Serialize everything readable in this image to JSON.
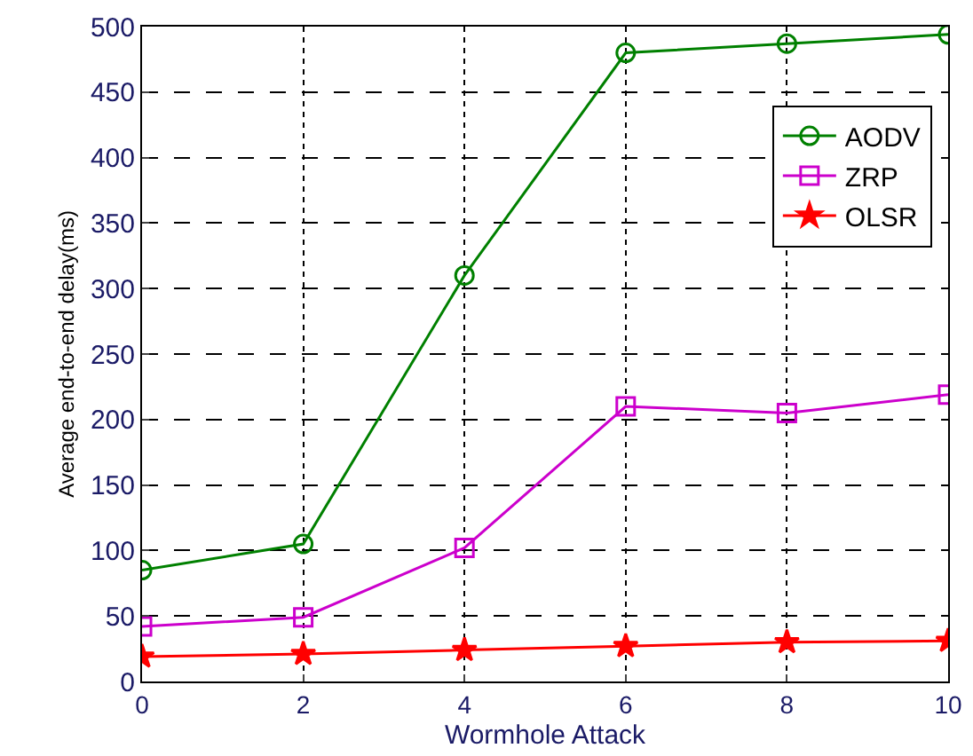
{
  "chart_data": {
    "type": "line",
    "xlabel": "Wormhole Attack",
    "ylabel": "Average end-to-end delay(ms)",
    "x": [
      0,
      2,
      4,
      6,
      8,
      10
    ],
    "series": [
      {
        "name": "AODV",
        "color": "#008000",
        "marker": "circle",
        "values": [
          85,
          105,
          310,
          480,
          487,
          494
        ]
      },
      {
        "name": "ZRP",
        "color": "#cc00cc",
        "marker": "square",
        "values": [
          42,
          49,
          102,
          210,
          205,
          219
        ]
      },
      {
        "name": "OLSR",
        "color": "#ff0000",
        "marker": "star",
        "values": [
          19,
          21,
          24,
          27,
          30,
          31
        ]
      }
    ],
    "xlim": [
      0,
      10
    ],
    "xticks": [
      0,
      2,
      4,
      6,
      8,
      10
    ],
    "ylim": [
      0,
      500
    ],
    "yticks": [
      0,
      50,
      100,
      150,
      200,
      250,
      300,
      350,
      400,
      450,
      500
    ],
    "grid": true,
    "legend": "top right",
    "line_style": "solid"
  }
}
